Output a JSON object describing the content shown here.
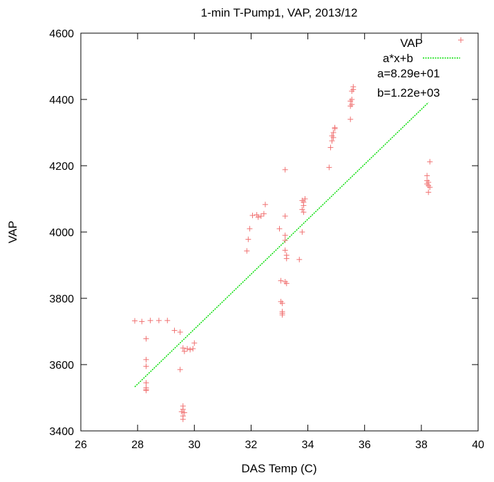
{
  "chart_data": {
    "type": "scatter",
    "title": "1-min T-Pump1, VAP, 2013/12",
    "xlabel": "DAS Temp (C)",
    "ylabel": "VAP",
    "xlim": [
      26,
      40
    ],
    "ylim": [
      3400,
      4600
    ],
    "xticks": [
      26,
      28,
      30,
      32,
      34,
      36,
      38,
      40
    ],
    "yticks": [
      3400,
      3600,
      3800,
      4000,
      4200,
      4400,
      4600
    ],
    "grid": false,
    "legend_position": "top-right",
    "series": [
      {
        "name": "VAP",
        "type": "scatter",
        "marker": "plus",
        "color": "#f07070",
        "points": [
          [
            27.9,
            3732
          ],
          [
            28.15,
            3730
          ],
          [
            28.45,
            3733
          ],
          [
            28.75,
            3733
          ],
          [
            29.05,
            3733
          ],
          [
            29.3,
            3703
          ],
          [
            29.5,
            3698
          ],
          [
            29.5,
            3585
          ],
          [
            29.6,
            3650
          ],
          [
            29.65,
            3640
          ],
          [
            29.75,
            3648
          ],
          [
            29.85,
            3645
          ],
          [
            29.95,
            3648
          ],
          [
            30.0,
            3665
          ],
          [
            28.3,
            3678
          ],
          [
            28.3,
            3615
          ],
          [
            28.3,
            3595
          ],
          [
            28.3,
            3545
          ],
          [
            28.3,
            3530
          ],
          [
            28.3,
            3525
          ],
          [
            28.3,
            3522
          ],
          [
            29.6,
            3475
          ],
          [
            29.6,
            3465
          ],
          [
            29.55,
            3458
          ],
          [
            29.65,
            3455
          ],
          [
            29.6,
            3445
          ],
          [
            29.6,
            3435
          ],
          [
            31.85,
            3943
          ],
          [
            31.9,
            3978
          ],
          [
            31.95,
            4010
          ],
          [
            32.05,
            4050
          ],
          [
            32.2,
            4052
          ],
          [
            32.25,
            4045
          ],
          [
            32.35,
            4048
          ],
          [
            32.45,
            4055
          ],
          [
            32.5,
            4083
          ],
          [
            33.0,
            4010
          ],
          [
            33.05,
            3853
          ],
          [
            33.05,
            3790
          ],
          [
            33.1,
            3785
          ],
          [
            33.1,
            3760
          ],
          [
            33.1,
            3755
          ],
          [
            33.1,
            3750
          ],
          [
            33.2,
            4188
          ],
          [
            33.2,
            4048
          ],
          [
            33.2,
            3990
          ],
          [
            33.2,
            3975
          ],
          [
            33.2,
            3945
          ],
          [
            33.25,
            3930
          ],
          [
            33.25,
            3920
          ],
          [
            33.2,
            3850
          ],
          [
            33.25,
            3845
          ],
          [
            33.7,
            3917
          ],
          [
            33.8,
            4095
          ],
          [
            33.85,
            4080
          ],
          [
            33.8,
            4068
          ],
          [
            33.85,
            4060
          ],
          [
            33.8,
            4000
          ],
          [
            33.85,
            4090
          ],
          [
            33.9,
            4100
          ],
          [
            34.75,
            4195
          ],
          [
            34.8,
            4255
          ],
          [
            34.85,
            4275
          ],
          [
            34.85,
            4290
          ],
          [
            34.9,
            4300
          ],
          [
            34.95,
            4312
          ],
          [
            34.9,
            4285
          ],
          [
            34.95,
            4315
          ],
          [
            35.5,
            4340
          ],
          [
            35.5,
            4380
          ],
          [
            35.5,
            4395
          ],
          [
            35.55,
            4400
          ],
          [
            35.55,
            4425
          ],
          [
            35.6,
            4430
          ],
          [
            35.6,
            4438
          ],
          [
            35.55,
            4385
          ],
          [
            38.2,
            4170
          ],
          [
            38.2,
            4155
          ],
          [
            38.25,
            4150
          ],
          [
            38.2,
            4145
          ],
          [
            38.25,
            4140
          ],
          [
            38.3,
            4135
          ],
          [
            38.25,
            4120
          ],
          [
            38.3,
            4212
          ]
        ]
      },
      {
        "name": "a*x+b",
        "type": "line",
        "style": "dashed",
        "color": "#00dd00",
        "slope": 82.9,
        "intercept": 1220,
        "x_range": [
          27.9,
          38.25
        ]
      }
    ],
    "annotations": [
      "a=8.29e+01",
      "b=1.22e+03"
    ]
  }
}
